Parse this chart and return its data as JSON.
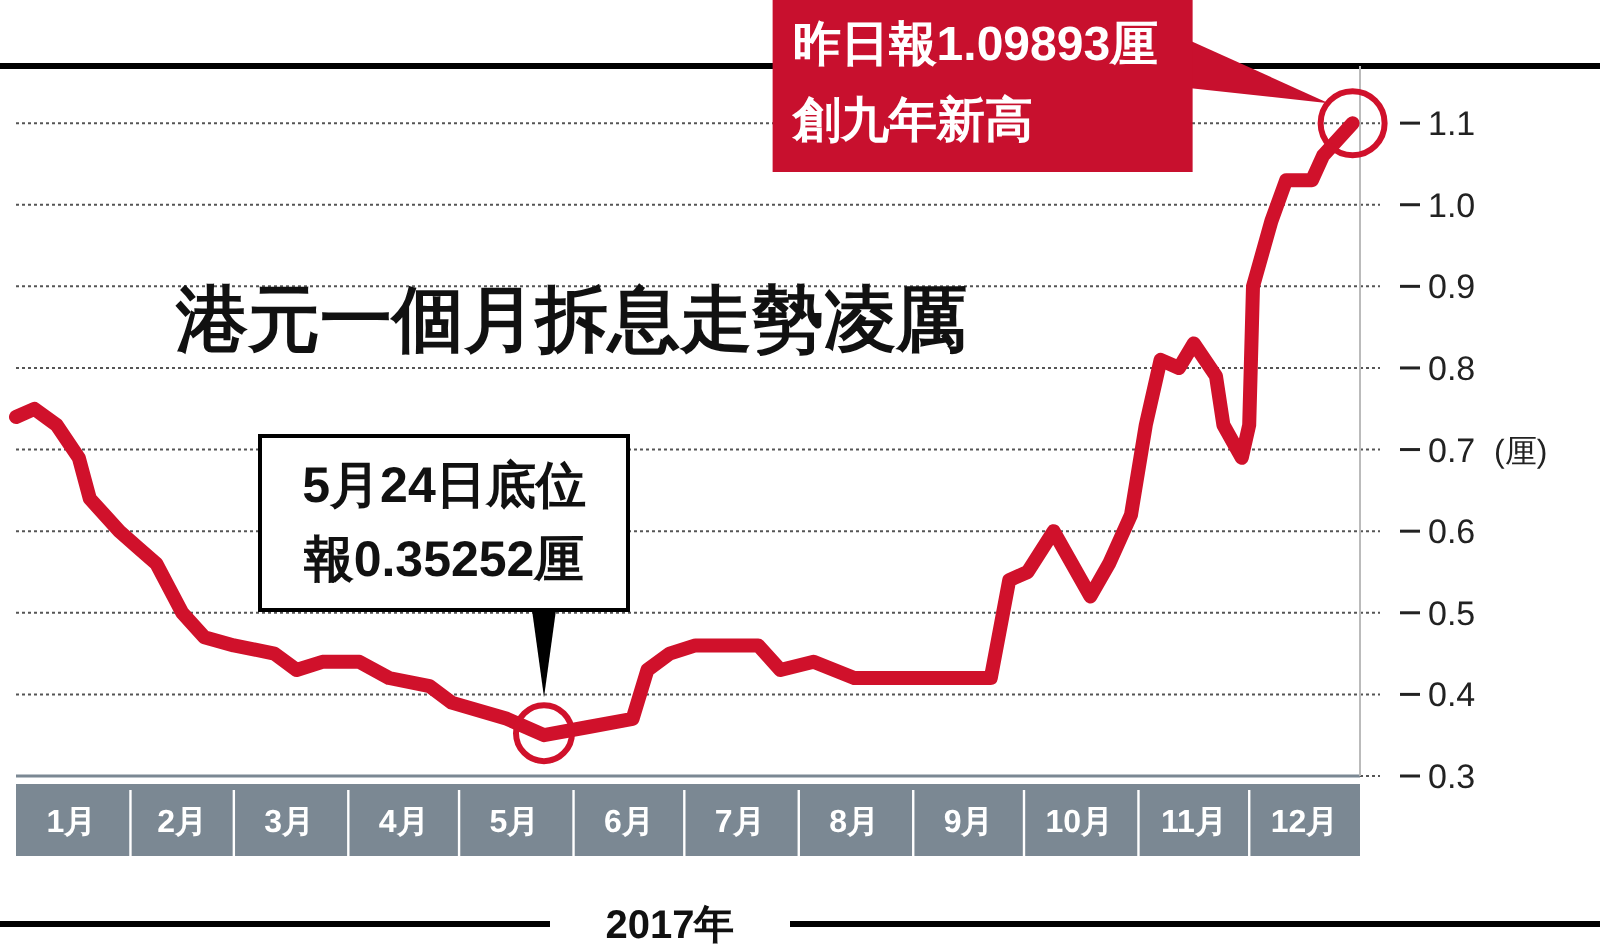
{
  "chart_data": {
    "type": "line",
    "title": "港元一個月拆息走勢凌厲",
    "xlabel": "2017年",
    "ylabel": "(厘)",
    "xticks": [
      {
        "value": "2017-01-16",
        "label": "1月"
      },
      {
        "value": "2017-02-15",
        "label": "2月"
      },
      {
        "value": "2017-03-16",
        "label": "3月"
      },
      {
        "value": "2017-04-16",
        "label": "4月"
      },
      {
        "value": "2017-05-16",
        "label": "5月"
      },
      {
        "value": "2017-06-16",
        "label": "6月"
      },
      {
        "value": "2017-07-16",
        "label": "7月"
      },
      {
        "value": "2017-08-16",
        "label": "8月"
      },
      {
        "value": "2017-09-16",
        "label": "9月"
      },
      {
        "value": "2017-10-16",
        "label": "10月"
      },
      {
        "value": "2017-11-16",
        "label": "11月"
      },
      {
        "value": "2017-12-16",
        "label": "12月"
      }
    ],
    "xlim": [
      "2017-01-01",
      "2017-12-31"
    ],
    "ylim": [
      0.3,
      1.17
    ],
    "yticks": [
      0.3,
      0.4,
      0.5,
      0.6,
      0.7,
      0.8,
      0.9,
      {
        "value": 1.0,
        "label": "1.0"
      },
      1.1
    ],
    "grid": "y",
    "marker": "none",
    "line_style": "solid",
    "series": [
      {
        "color": "#d0112b",
        "x": [
          "2017-01-01",
          "2017-01-06",
          "2017-01-12",
          "2017-01-18",
          "2017-01-21",
          "2017-01-29",
          "2017-02-03",
          "2017-02-08",
          "2017-02-15",
          "2017-02-21",
          "2017-03-01",
          "2017-03-12",
          "2017-03-18",
          "2017-03-25",
          "2017-04-04",
          "2017-04-12",
          "2017-04-23",
          "2017-04-29",
          "2017-05-14",
          "2017-05-24",
          "2017-06-05",
          "2017-06-17",
          "2017-06-21",
          "2017-06-27",
          "2017-07-04",
          "2017-07-21",
          "2017-07-27",
          "2017-08-05",
          "2017-08-16",
          "2017-09-08",
          "2017-09-22",
          "2017-09-27",
          "2017-10-02",
          "2017-10-09",
          "2017-10-19",
          "2017-10-24",
          "2017-10-30",
          "2017-11-03",
          "2017-11-07",
          "2017-11-12",
          "2017-11-16",
          "2017-11-22",
          "2017-11-24",
          "2017-11-29",
          "2017-12-01",
          "2017-12-02",
          "2017-12-07",
          "2017-12-11",
          "2017-12-18",
          "2017-12-21",
          "2017-12-29"
        ],
        "values": [
          0.74,
          0.75,
          0.73,
          0.69,
          0.64,
          0.6,
          0.58,
          0.56,
          0.5,
          0.47,
          0.46,
          0.45,
          0.43,
          0.44,
          0.44,
          0.42,
          0.41,
          0.39,
          0.37,
          0.35,
          0.36,
          0.37,
          0.43,
          0.45,
          0.46,
          0.46,
          0.43,
          0.44,
          0.42,
          0.42,
          0.42,
          0.54,
          0.55,
          0.6,
          0.52,
          0.56,
          0.62,
          0.73,
          0.81,
          0.8,
          0.83,
          0.79,
          0.73,
          0.69,
          0.73,
          0.9,
          0.98,
          1.03,
          1.03,
          1.06,
          1.1
        ]
      }
    ],
    "annotations": [
      {
        "text": "5月24日底位報0.35252厘",
        "x": "2017-05-24",
        "y": 0.35252
      },
      "昨日報1.09893厘創九年新高"
    ]
  }
}
